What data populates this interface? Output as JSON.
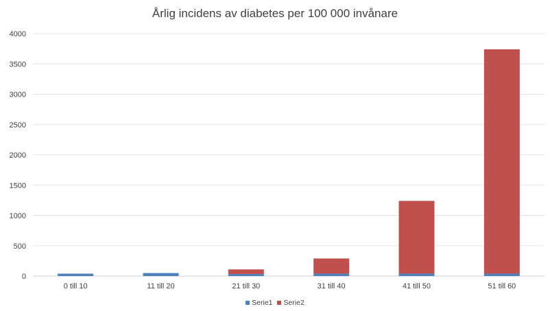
{
  "chart_data": {
    "type": "bar",
    "stacked": true,
    "title": "Årlig incidens av diabetes per 100 000 invånare",
    "xlabel": "",
    "ylabel": "",
    "categories": [
      "0 till 10",
      "11 till 20",
      "21 till 30",
      "31 till 40",
      "41 till 50",
      "51 till 60"
    ],
    "series": [
      {
        "name": "Serie1",
        "color": "#4f81bd",
        "values": [
          40,
          50,
          35,
          40,
          40,
          40
        ]
      },
      {
        "name": "Serie2",
        "color": "#c0504d",
        "values": [
          0,
          0,
          75,
          250,
          1200,
          3700
        ]
      }
    ],
    "ylim": [
      0,
      4000
    ],
    "yticks": [
      0,
      500,
      1000,
      1500,
      2000,
      2500,
      3000,
      3500,
      4000
    ],
    "grid": true,
    "legend_position": "bottom"
  }
}
